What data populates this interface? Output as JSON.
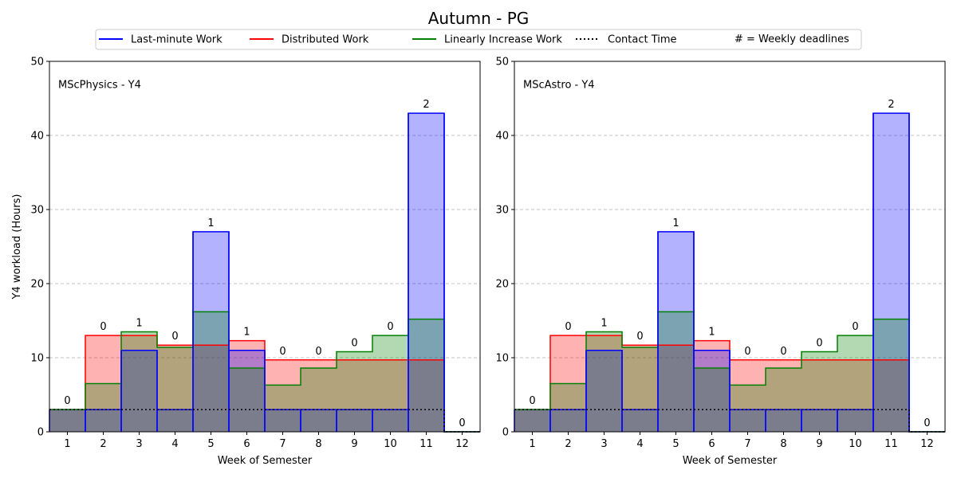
{
  "title": "Autumn - PG",
  "legend": {
    "items": [
      {
        "label": "Last-minute Work",
        "color": "#0000ff",
        "style": "solid"
      },
      {
        "label": "Distributed Work",
        "color": "#ff0000",
        "style": "solid"
      },
      {
        "label": "Linearly Increase Work",
        "color": "#008000",
        "style": "solid"
      },
      {
        "label": "Contact Time",
        "color": "#000000",
        "style": "dotted"
      }
    ],
    "note": "# = Weekly deadlines"
  },
  "chart_data": [
    {
      "type": "step-area",
      "panel_label": "MScPhysics - Y4",
      "xlabel": "Week of Semester",
      "ylabel": "Y4 workload (Hours)",
      "ylim": [
        0,
        50
      ],
      "yticks": [
        0,
        10,
        20,
        30,
        40,
        50
      ],
      "grid": "y-dashed",
      "categories": [
        1,
        2,
        3,
        4,
        5,
        6,
        7,
        8,
        9,
        10,
        11,
        12
      ],
      "series": [
        {
          "name": "Last-minute Work",
          "values": [
            3,
            3,
            11,
            3,
            27,
            11,
            3,
            3,
            3,
            3,
            43,
            0
          ]
        },
        {
          "name": "Distributed Work",
          "values": [
            3,
            13,
            13,
            11.7,
            11.7,
            12.3,
            9.7,
            9.7,
            9.7,
            9.7,
            9.7,
            0
          ]
        },
        {
          "name": "Linearly Increase Work",
          "values": [
            3,
            6.5,
            13.5,
            11.4,
            16.2,
            8.6,
            6.3,
            8.6,
            10.8,
            13,
            15.2,
            0
          ]
        },
        {
          "name": "Contact Time",
          "values": [
            3,
            3,
            3,
            3,
            3,
            3,
            3,
            3,
            3,
            3,
            3,
            0
          ]
        }
      ],
      "deadlines": [
        0,
        0,
        1,
        0,
        1,
        1,
        0,
        0,
        0,
        0,
        2,
        0
      ]
    },
    {
      "type": "step-area",
      "panel_label": "MScAstro - Y4",
      "xlabel": "Week of Semester",
      "ylabel": "",
      "ylim": [
        0,
        50
      ],
      "yticks": [
        0,
        10,
        20,
        30,
        40,
        50
      ],
      "grid": "y-dashed",
      "categories": [
        1,
        2,
        3,
        4,
        5,
        6,
        7,
        8,
        9,
        10,
        11,
        12
      ],
      "series": [
        {
          "name": "Last-minute Work",
          "values": [
            3,
            3,
            11,
            3,
            27,
            11,
            3,
            3,
            3,
            3,
            43,
            0
          ]
        },
        {
          "name": "Distributed Work",
          "values": [
            3,
            13,
            13,
            11.7,
            11.7,
            12.3,
            9.7,
            9.7,
            9.7,
            9.7,
            9.7,
            0
          ]
        },
        {
          "name": "Linearly Increase Work",
          "values": [
            3,
            6.5,
            13.5,
            11.4,
            16.2,
            8.6,
            6.3,
            8.6,
            10.8,
            13,
            15.2,
            0
          ]
        },
        {
          "name": "Contact Time",
          "values": [
            3,
            3,
            3,
            3,
            3,
            3,
            3,
            3,
            3,
            3,
            3,
            0
          ]
        }
      ],
      "deadlines": [
        0,
        0,
        1,
        0,
        1,
        1,
        0,
        0,
        0,
        0,
        2,
        0
      ]
    }
  ]
}
